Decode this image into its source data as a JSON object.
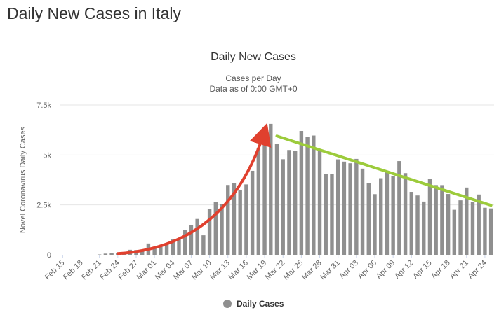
{
  "page": {
    "title": "Daily New Cases in Italy"
  },
  "chart_data": {
    "type": "bar",
    "title": "Daily New Cases",
    "subtitle_lines": [
      "Cases per Day",
      "Data as of 0:00 GMT+0"
    ],
    "xlabel": "",
    "ylabel": "Novel Coronavirus Daily Cases",
    "ylim": [
      0,
      7500
    ],
    "yticks": [
      0,
      2500,
      5000,
      7500
    ],
    "ytick_labels": [
      "0",
      "2.5k",
      "5k",
      "7.5k"
    ],
    "grid": "horizontal",
    "legend": {
      "placement": "bottom-center",
      "label": "Daily Cases",
      "color": "#8f8f8f"
    },
    "xtick_labels": [
      "Feb 15",
      "Feb 18",
      "Feb 21",
      "Feb 24",
      "Feb 27",
      "Mar 01",
      "Mar 04",
      "Mar 07",
      "Mar 10",
      "Mar 13",
      "Mar 16",
      "Mar 19",
      "Mar 22",
      "Mar 25",
      "Mar 28",
      "Mar 31",
      "Apr 03",
      "Apr 06",
      "Apr 09",
      "Apr 12",
      "Apr 15",
      "Apr 18",
      "Apr 21",
      "Apr 24"
    ],
    "categories": [
      "Feb 15",
      "Feb 16",
      "Feb 17",
      "Feb 18",
      "Feb 19",
      "Feb 20",
      "Feb 21",
      "Feb 22",
      "Feb 23",
      "Feb 24",
      "Feb 25",
      "Feb 26",
      "Feb 27",
      "Feb 28",
      "Feb 29",
      "Mar 01",
      "Mar 02",
      "Mar 03",
      "Mar 04",
      "Mar 05",
      "Mar 06",
      "Mar 07",
      "Mar 08",
      "Mar 09",
      "Mar 10",
      "Mar 11",
      "Mar 12",
      "Mar 13",
      "Mar 14",
      "Mar 15",
      "Mar 16",
      "Mar 17",
      "Mar 18",
      "Mar 19",
      "Mar 20",
      "Mar 21",
      "Mar 22",
      "Mar 23",
      "Mar 24",
      "Mar 25",
      "Mar 26",
      "Mar 27",
      "Mar 28",
      "Mar 29",
      "Mar 30",
      "Mar 31",
      "Apr 01",
      "Apr 02",
      "Apr 03",
      "Apr 04",
      "Apr 05",
      "Apr 06",
      "Apr 07",
      "Apr 08",
      "Apr 09",
      "Apr 10",
      "Apr 11",
      "Apr 12",
      "Apr 13",
      "Apr 14",
      "Apr 15",
      "Apr 16",
      "Apr 17",
      "Apr 18",
      "Apr 19",
      "Apr 20",
      "Apr 21",
      "Apr 22",
      "Apr 23",
      "Apr 24",
      "Apr 25"
    ],
    "series": [
      {
        "name": "Daily Cases",
        "color": "#8f8f8f",
        "values": [
          0,
          0,
          0,
          0,
          0,
          0,
          17,
          59,
          76,
          93,
          78,
          250,
          238,
          240,
          566,
          342,
          466,
          587,
          769,
          778,
          1247,
          1492,
          1797,
          977,
          2313,
          2651,
          2547,
          3497,
          3590,
          3233,
          3526,
          4207,
          5322,
          5986,
          6557,
          5560,
          4789,
          5249,
          5210,
          6203,
          5909,
          5974,
          5217,
          4050,
          4053,
          4782,
          4668,
          4585,
          4805,
          4316,
          3599,
          3039,
          3836,
          4204,
          3951,
          4694,
          4092,
          3153,
          2972,
          2667,
          3786,
          3493,
          3491,
          3047,
          2256,
          2729,
          3370,
          2646,
          3021,
          2357,
          2324
        ]
      }
    ],
    "annotations": [
      {
        "type": "curved-arrow",
        "color": "#e0402e",
        "label": "",
        "from": {
          "x": "Feb 24",
          "y": 60
        },
        "to": {
          "x": "Mar 19",
          "y": 6200
        }
      },
      {
        "type": "trend-line",
        "color": "#9ccb3b",
        "label": "",
        "from": {
          "x": "Mar 21",
          "y": 5950
        },
        "to": {
          "x": "Apr 25",
          "y": 2480
        }
      }
    ]
  }
}
